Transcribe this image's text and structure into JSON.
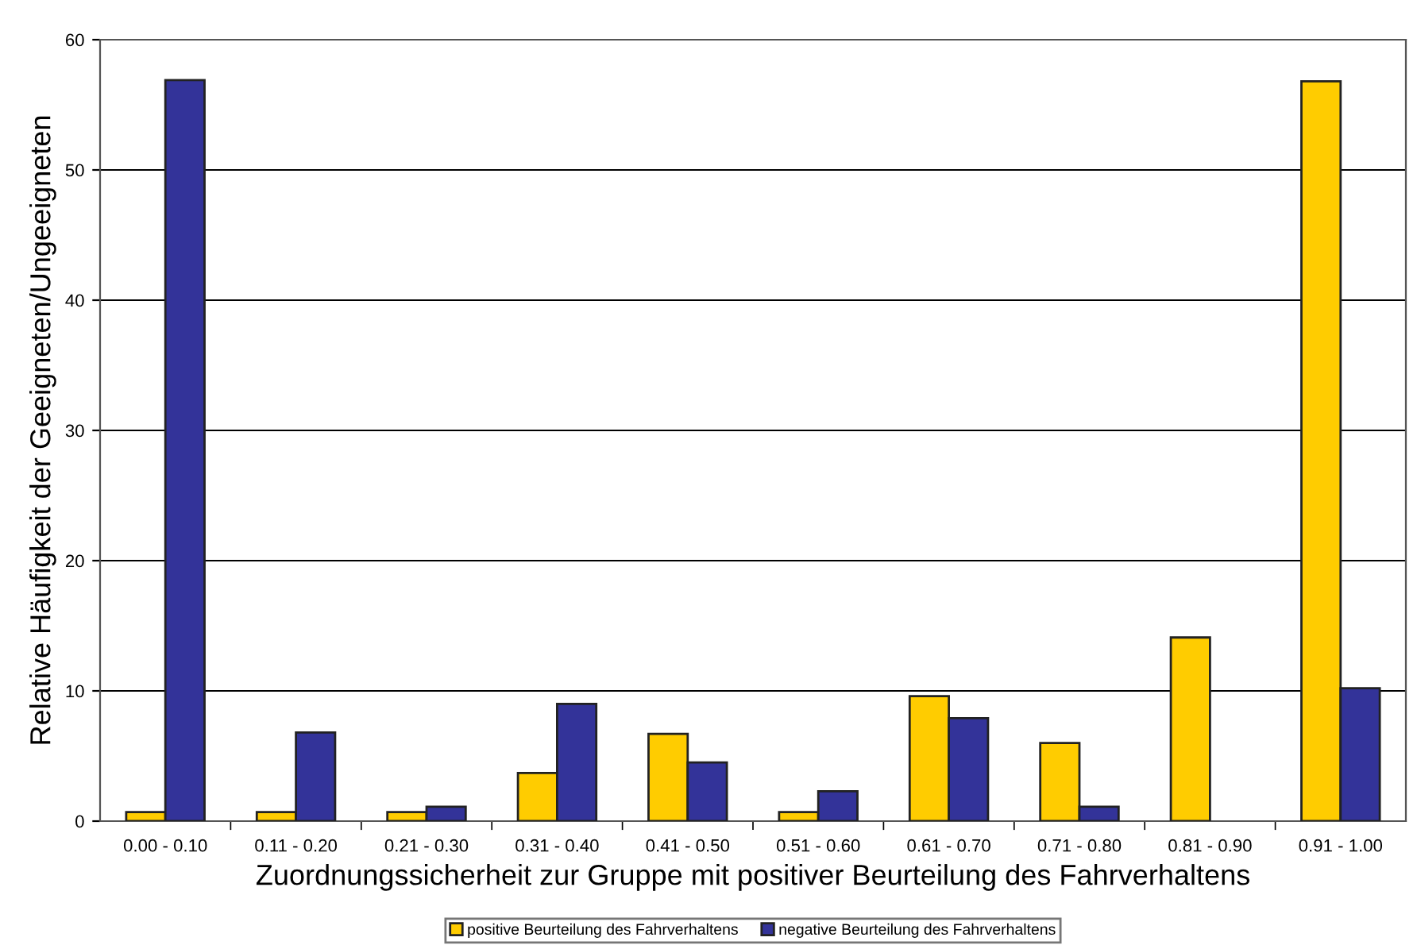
{
  "chart_data": {
    "type": "bar",
    "xlabel": "Zuordnungssicherheit zur Gruppe mit positiver Beurteilung des Fahrverhaltens",
    "ylabel": "Relative Häufigkeit der Geeigneten/Ungeeigneten",
    "categories": [
      "0.00 - 0.10",
      "0.11 - 0.20",
      "0.21 - 0.30",
      "0.31 - 0.40",
      "0.41 - 0.50",
      "0.51 - 0.60",
      "0.61 - 0.70",
      "0.71 - 0.80",
      "0.81 - 0.90",
      "0.91 - 1.00"
    ],
    "series": [
      {
        "name": "positive Beurteilung des Fahrverhaltens",
        "color": "#ffcc00",
        "values": [
          0.7,
          0.7,
          0.7,
          3.7,
          6.7,
          0.7,
          9.6,
          6.0,
          14.1,
          56.8
        ]
      },
      {
        "name": "negative Beurteilung des Fahrverhaltens",
        "color": "#333399",
        "values": [
          56.9,
          6.8,
          1.1,
          9.0,
          4.5,
          2.3,
          7.9,
          1.1,
          0,
          10.2
        ]
      }
    ],
    "ylim": [
      0,
      60
    ],
    "yticks": [
      0,
      10,
      20,
      30,
      40,
      50,
      60
    ],
    "grid": "y",
    "legend": "bottom"
  }
}
